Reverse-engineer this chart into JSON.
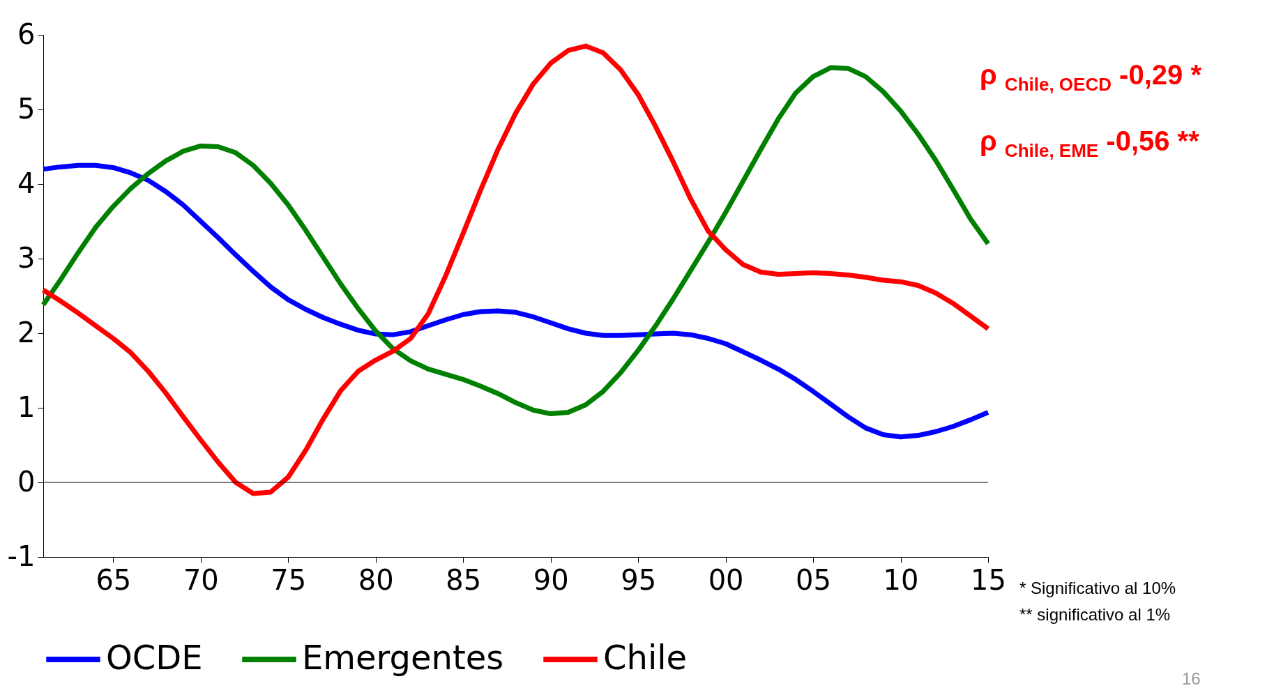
{
  "chart_data": {
    "type": "line",
    "x": [
      1961,
      1962,
      1963,
      1964,
      1965,
      1966,
      1967,
      1968,
      1969,
      1970,
      1971,
      1972,
      1973,
      1974,
      1975,
      1976,
      1977,
      1978,
      1979,
      1980,
      1981,
      1982,
      1983,
      1984,
      1985,
      1986,
      1987,
      1988,
      1989,
      1990,
      1991,
      1992,
      1993,
      1994,
      1995,
      1996,
      1997,
      1998,
      1999,
      2000,
      2001,
      2002,
      2003,
      2004,
      2005,
      2006,
      2007,
      2008,
      2009,
      2010,
      2011,
      2012,
      2013,
      2014,
      2015
    ],
    "series": [
      {
        "name": "OCDE",
        "color": "#0000ff",
        "values": [
          4.2,
          4.23,
          4.25,
          4.25,
          4.22,
          4.15,
          4.05,
          3.9,
          3.72,
          3.5,
          3.28,
          3.05,
          2.83,
          2.62,
          2.45,
          2.32,
          2.21,
          2.12,
          2.04,
          1.99,
          1.98,
          2.02,
          2.1,
          2.18,
          2.25,
          2.29,
          2.3,
          2.28,
          2.22,
          2.14,
          2.06,
          2.0,
          1.97,
          1.97,
          1.98,
          1.99,
          2.0,
          1.98,
          1.93,
          1.86,
          1.75,
          1.64,
          1.52,
          1.38,
          1.22,
          1.05,
          0.88,
          0.73,
          0.64,
          0.61,
          0.63,
          0.68,
          0.75,
          0.84,
          0.94
        ]
      },
      {
        "name": "Emergentes",
        "color": "#008000",
        "values": [
          2.38,
          2.72,
          3.08,
          3.42,
          3.7,
          3.94,
          4.14,
          4.31,
          4.44,
          4.51,
          4.5,
          4.42,
          4.25,
          4.01,
          3.72,
          3.38,
          3.02,
          2.66,
          2.33,
          2.03,
          1.79,
          1.63,
          1.52,
          1.45,
          1.38,
          1.29,
          1.19,
          1.07,
          0.97,
          0.92,
          0.94,
          1.04,
          1.22,
          1.47,
          1.77,
          2.1,
          2.46,
          2.84,
          3.22,
          3.62,
          4.04,
          4.46,
          4.87,
          5.22,
          5.44,
          5.56,
          5.55,
          5.44,
          5.24,
          4.98,
          4.67,
          4.32,
          3.93,
          3.53,
          3.2
        ]
      },
      {
        "name": "Chile",
        "color": "#ff0000",
        "values": [
          2.58,
          2.43,
          2.27,
          2.1,
          1.93,
          1.74,
          1.49,
          1.2,
          0.88,
          0.57,
          0.27,
          0.0,
          -0.15,
          -0.13,
          0.07,
          0.43,
          0.85,
          1.23,
          1.49,
          1.64,
          1.76,
          1.93,
          2.26,
          2.77,
          3.34,
          3.92,
          4.47,
          4.95,
          5.34,
          5.62,
          5.79,
          5.85,
          5.76,
          5.53,
          5.2,
          4.77,
          4.3,
          3.8,
          3.37,
          3.12,
          2.92,
          2.82,
          2.79,
          2.8,
          2.81,
          2.8,
          2.78,
          2.75,
          2.71,
          2.69,
          2.64,
          2.54,
          2.4,
          2.23,
          2.06
        ]
      }
    ],
    "xlim": [
      1961,
      2015
    ],
    "xticks": [
      {
        "value": 1965,
        "label": "65"
      },
      {
        "value": 1970,
        "label": "70"
      },
      {
        "value": 1975,
        "label": "75"
      },
      {
        "value": 1980,
        "label": "80"
      },
      {
        "value": 1985,
        "label": "85"
      },
      {
        "value": 1990,
        "label": "90"
      },
      {
        "value": 1995,
        "label": "95"
      },
      {
        "value": 2000,
        "label": "00"
      },
      {
        "value": 2005,
        "label": "05"
      },
      {
        "value": 2010,
        "label": "10"
      },
      {
        "value": 2015,
        "label": "15"
      }
    ],
    "ylim": [
      -1,
      6
    ],
    "yticks": [
      -1,
      0,
      1,
      2,
      3,
      4,
      5,
      6
    ],
    "ref_lines": [
      {
        "axis": "y",
        "value": 0,
        "color": "#000000"
      }
    ],
    "annotations": [
      "ρ $_{Chile, OECD}$  -0,29 *",
      "ρ $_{Chile, EME}$  -0,56 **",
      "* Significativo al 10%",
      "** significativo al 1%",
      "16"
    ],
    "legend": "bottom",
    "grid": false
  }
}
